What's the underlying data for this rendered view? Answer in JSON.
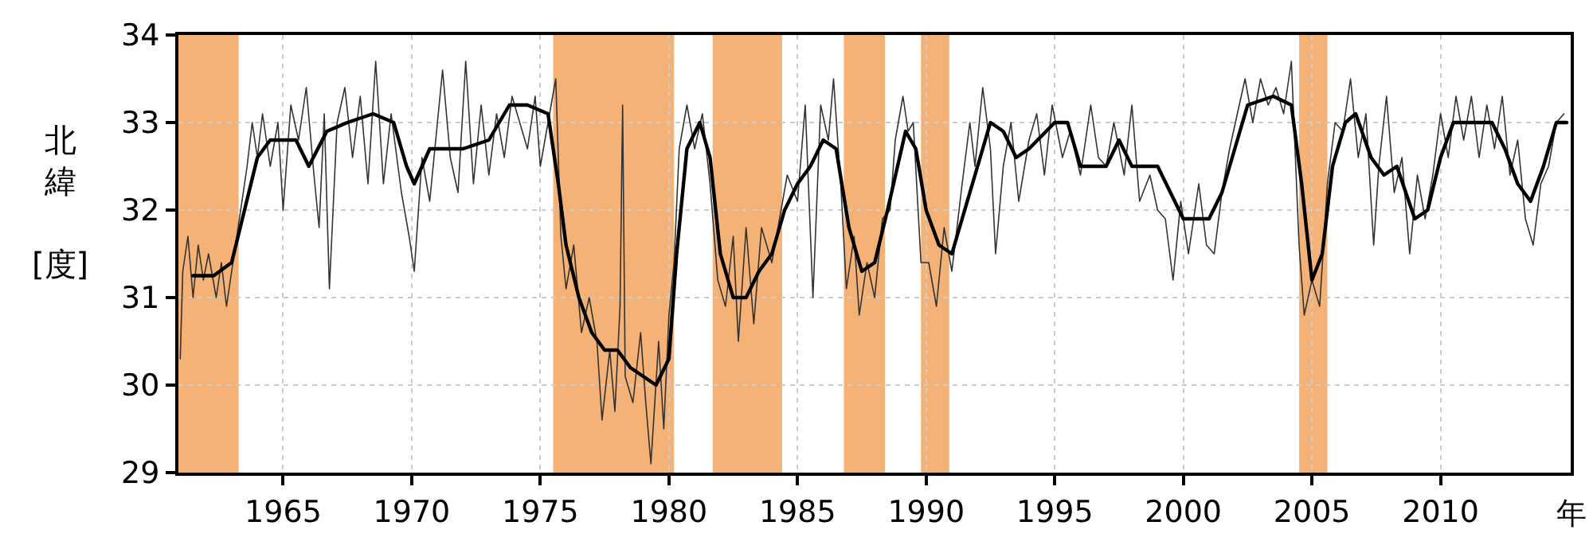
{
  "chart_data": {
    "type": "line",
    "xlabel": "年",
    "ylabel": "北緯 [度]",
    "xlim": [
      1960.93,
      2015.06
    ],
    "ylim": [
      29,
      34
    ],
    "xticks": [
      1965,
      1970,
      1975,
      1980,
      1985,
      1990,
      1995,
      2000,
      2005,
      2010
    ],
    "yticks": [
      29,
      30,
      31,
      32,
      33,
      34
    ],
    "grid": true,
    "series": [
      {
        "color": "#333333",
        "line_style": "solid",
        "x": [
          1961.0,
          1961.1,
          1961.3,
          1961.5,
          1961.7,
          1961.9,
          1962.1,
          1962.4,
          1962.6,
          1962.8,
          1963.0,
          1963.3,
          1963.6,
          1963.8,
          1964.0,
          1964.2,
          1964.5,
          1964.8,
          1965.0,
          1965.3,
          1965.6,
          1965.9,
          1966.2,
          1966.4,
          1966.6,
          1966.8,
          1967.1,
          1967.4,
          1967.7,
          1968.0,
          1968.3,
          1968.6,
          1968.9,
          1969.2,
          1969.6,
          1969.9,
          1970.1,
          1970.4,
          1970.7,
          1971.0,
          1971.2,
          1971.5,
          1971.8,
          1972.1,
          1972.4,
          1972.7,
          1973.0,
          1973.3,
          1973.6,
          1973.9,
          1974.2,
          1974.5,
          1974.8,
          1975.0,
          1975.3,
          1975.6,
          1975.8,
          1976.0,
          1976.3,
          1976.6,
          1976.9,
          1977.2,
          1977.4,
          1977.7,
          1977.9,
          1978.1,
          1978.2,
          1978.3,
          1978.6,
          1978.9,
          1979.1,
          1979.3,
          1979.6,
          1979.8,
          1980.0,
          1980.2,
          1980.4,
          1980.7,
          1981.0,
          1981.3,
          1981.6,
          1981.9,
          1982.2,
          1982.5,
          1982.7,
          1983.0,
          1983.3,
          1983.6,
          1984.0,
          1984.3,
          1984.6,
          1985.0,
          1985.3,
          1985.6,
          1985.9,
          1986.2,
          1986.4,
          1986.7,
          1986.9,
          1987.2,
          1987.4,
          1987.7,
          1988.0,
          1988.3,
          1988.6,
          1988.8,
          1989.1,
          1989.3,
          1989.5,
          1989.8,
          1990.1,
          1990.4,
          1990.7,
          1991.0,
          1991.4,
          1991.7,
          1991.9,
          1992.2,
          1992.5,
          1992.7,
          1993.0,
          1993.3,
          1993.6,
          1994.0,
          1994.3,
          1994.6,
          1994.9,
          1995.3,
          1995.6,
          1996.0,
          1996.4,
          1996.7,
          1997.0,
          1997.3,
          1997.7,
          1998.0,
          1998.3,
          1998.7,
          1999.0,
          1999.3,
          1999.6,
          1999.9,
          2000.2,
          2000.6,
          2000.9,
          2001.2,
          2001.5,
          2001.8,
          2002.1,
          2002.4,
          2002.7,
          2003.0,
          2003.3,
          2003.6,
          2003.9,
          2004.2,
          2004.5,
          2004.7,
          2005.0,
          2005.3,
          2005.6,
          2005.9,
          2006.2,
          2006.5,
          2006.8,
          2007.1,
          2007.4,
          2007.6,
          2007.9,
          2008.2,
          2008.5,
          2008.8,
          2009.1,
          2009.4,
          2009.7,
          2010.0,
          2010.3,
          2010.6,
          2010.9,
          2011.2,
          2011.5,
          2011.8,
          2012.1,
          2012.4,
          2012.7,
          2013.0,
          2013.3,
          2013.6,
          2013.9,
          2014.2,
          2014.5,
          2014.8
        ],
        "values": [
          30.3,
          31.3,
          31.7,
          31.0,
          31.6,
          31.2,
          31.5,
          31.0,
          31.4,
          30.9,
          31.3,
          31.9,
          32.5,
          33.0,
          32.6,
          33.1,
          32.5,
          33.0,
          32.0,
          33.2,
          32.8,
          33.4,
          32.4,
          31.8,
          33.1,
          31.1,
          33.0,
          33.4,
          32.6,
          33.3,
          32.3,
          33.7,
          32.3,
          33.1,
          32.2,
          31.7,
          31.3,
          32.6,
          32.1,
          33.0,
          33.6,
          32.6,
          32.2,
          33.7,
          32.3,
          33.2,
          32.4,
          33.1,
          32.6,
          33.3,
          33.0,
          32.7,
          33.3,
          32.5,
          33.0,
          33.5,
          31.7,
          31.1,
          31.6,
          30.6,
          31.0,
          30.5,
          29.6,
          30.4,
          29.7,
          30.9,
          33.2,
          30.1,
          29.8,
          30.6,
          29.8,
          29.1,
          30.5,
          29.5,
          30.8,
          31.4,
          32.7,
          33.2,
          32.7,
          33.1,
          32.3,
          31.2,
          30.9,
          31.7,
          30.5,
          31.8,
          30.7,
          31.8,
          31.4,
          31.9,
          32.4,
          32.1,
          33.2,
          31.0,
          33.2,
          32.8,
          33.5,
          32.2,
          31.1,
          31.7,
          30.8,
          31.4,
          31.0,
          31.9,
          32.0,
          32.8,
          33.3,
          32.9,
          33.0,
          31.4,
          31.4,
          30.9,
          31.8,
          31.3,
          32.3,
          33.0,
          32.5,
          33.4,
          32.7,
          31.5,
          32.5,
          33.0,
          32.1,
          32.8,
          33.1,
          32.4,
          33.2,
          32.6,
          32.9,
          32.4,
          33.2,
          32.6,
          32.5,
          33.0,
          32.4,
          33.2,
          32.1,
          32.4,
          32.0,
          31.9,
          31.2,
          32.1,
          31.5,
          32.3,
          31.6,
          31.5,
          32.2,
          32.7,
          33.1,
          33.5,
          33.0,
          33.5,
          33.2,
          33.4,
          33.1,
          33.7,
          31.6,
          30.8,
          31.2,
          30.9,
          32.3,
          33.0,
          32.9,
          33.5,
          32.6,
          33.1,
          31.6,
          32.5,
          33.3,
          32.2,
          32.6,
          31.5,
          32.4,
          31.9,
          32.4,
          33.1,
          32.6,
          33.3,
          32.8,
          33.3,
          32.6,
          33.2,
          32.7,
          33.3,
          32.4,
          32.8,
          31.9,
          31.6,
          32.3,
          32.5,
          33.0,
          33.1
        ]
      },
      {
        "color": "#000000",
        "line_style": "solid",
        "x": [
          1961.5,
          1962.3,
          1963.0,
          1963.5,
          1964.0,
          1964.5,
          1965.5,
          1966.0,
          1966.7,
          1967.5,
          1968.5,
          1969.3,
          1969.8,
          1970.1,
          1970.7,
          1972.0,
          1973.0,
          1973.8,
          1974.5,
          1975.3,
          1975.7,
          1976.0,
          1976.5,
          1977.0,
          1977.5,
          1978.0,
          1978.5,
          1979.0,
          1979.5,
          1980.0,
          1980.3,
          1980.7,
          1981.2,
          1981.6,
          1982.0,
          1982.5,
          1983.0,
          1983.5,
          1984.0,
          1984.5,
          1985.0,
          1985.5,
          1986.0,
          1986.5,
          1987.0,
          1987.5,
          1988.0,
          1988.5,
          1989.2,
          1989.6,
          1990.0,
          1990.5,
          1991.0,
          1991.5,
          1992.0,
          1992.5,
          1993.0,
          1993.5,
          1994.0,
          1995.0,
          1995.5,
          1996.0,
          1997.0,
          1997.5,
          1998.0,
          1999.0,
          1999.5,
          2000.0,
          2001.0,
          2001.5,
          2002.0,
          2002.5,
          2003.5,
          2004.2,
          2004.6,
          2005.0,
          2005.4,
          2005.8,
          2006.3,
          2006.7,
          2007.3,
          2007.8,
          2008.3,
          2009.0,
          2009.5,
          2010.0,
          2010.5,
          2012.0,
          2012.5,
          2013.0,
          2013.5,
          2014.0,
          2014.5,
          2014.9
        ],
        "values": [
          31.25,
          31.25,
          31.4,
          32.0,
          32.6,
          32.8,
          32.8,
          32.5,
          32.9,
          33.0,
          33.1,
          33.0,
          32.5,
          32.3,
          32.7,
          32.7,
          32.8,
          33.2,
          33.2,
          33.1,
          32.3,
          31.6,
          31.0,
          30.6,
          30.4,
          30.4,
          30.2,
          30.1,
          30.0,
          30.3,
          31.5,
          32.7,
          33.0,
          32.6,
          31.5,
          31.0,
          31.0,
          31.3,
          31.5,
          32.0,
          32.3,
          32.5,
          32.8,
          32.7,
          31.8,
          31.3,
          31.4,
          32.0,
          32.9,
          32.7,
          32.0,
          31.6,
          31.5,
          32.0,
          32.5,
          33.0,
          32.9,
          32.6,
          32.7,
          33.0,
          33.0,
          32.5,
          32.5,
          32.8,
          32.5,
          32.5,
          32.2,
          31.9,
          31.9,
          32.2,
          32.7,
          33.2,
          33.3,
          33.2,
          32.3,
          31.2,
          31.5,
          32.5,
          33.0,
          33.1,
          32.6,
          32.4,
          32.5,
          31.9,
          32.0,
          32.6,
          33.0,
          33.0,
          32.7,
          32.3,
          32.1,
          32.5,
          33.0,
          33.0
        ]
      }
    ],
    "bands": [
      {
        "axis": "x",
        "from": 1960.93,
        "to": 1963.27,
        "color": "#f5b276"
      },
      {
        "axis": "x",
        "from": 1975.5,
        "to": 1980.2,
        "color": "#f5b276"
      },
      {
        "axis": "x",
        "from": 1981.7,
        "to": 1984.4,
        "color": "#f5b276"
      },
      {
        "axis": "x",
        "from": 1986.8,
        "to": 1988.4,
        "color": "#f5b276"
      },
      {
        "axis": "x",
        "from": 1989.8,
        "to": 1990.9,
        "color": "#f5b276"
      },
      {
        "axis": "x",
        "from": 2004.5,
        "to": 2005.6,
        "color": "#f5b276"
      }
    ]
  }
}
